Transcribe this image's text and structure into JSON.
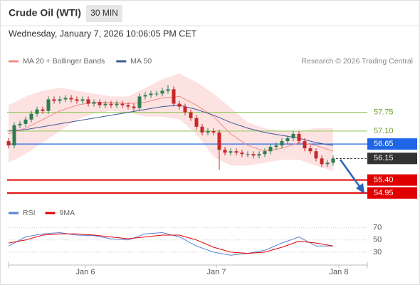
{
  "header": {
    "title": "Crude Oil (WTI)",
    "interval": "30 MIN",
    "timestamp": "Wednesday, January 7, 2026 10:06:05 PM CET",
    "credit": "Research © 2026 Trading Central"
  },
  "chart_data": [
    {
      "type": "candlestick",
      "x": [
        0,
        1,
        2,
        3,
        4,
        5,
        6,
        7,
        8,
        9,
        10,
        11,
        12,
        13,
        14,
        15,
        16,
        17,
        18,
        19,
        20,
        21,
        22,
        23,
        24,
        25,
        26,
        27,
        28,
        29,
        30,
        31,
        32,
        33,
        34,
        35,
        36,
        37,
        38,
        39,
        40,
        41,
        42,
        43,
        44,
        45,
        46,
        47,
        48,
        49,
        50,
        51,
        52,
        53,
        54,
        55,
        56,
        57
      ],
      "open": [
        56.75,
        56.6,
        57.3,
        57.35,
        57.5,
        57.7,
        57.85,
        57.8,
        58.2,
        58.15,
        58.2,
        58.25,
        58.2,
        58.15,
        58.2,
        58.05,
        58.1,
        58.0,
        58.05,
        58.0,
        58.05,
        58.0,
        57.95,
        57.9,
        58.3,
        58.35,
        58.4,
        58.4,
        58.5,
        58.55,
        58.05,
        57.95,
        57.75,
        57.55,
        57.25,
        57.05,
        57.1,
        57.05,
        56.45,
        56.35,
        56.4,
        56.35,
        56.3,
        56.3,
        56.25,
        56.3,
        56.4,
        56.55,
        56.6,
        56.75,
        56.85,
        57.0,
        56.75,
        56.5,
        56.4,
        56.15,
        55.95,
        56.0
      ],
      "high": [
        56.85,
        57.4,
        57.45,
        57.6,
        57.8,
        57.95,
        57.95,
        58.3,
        58.3,
        58.3,
        58.35,
        58.35,
        58.3,
        58.3,
        58.3,
        58.2,
        58.2,
        58.15,
        58.15,
        58.15,
        58.15,
        58.1,
        58.05,
        58.4,
        58.45,
        58.5,
        58.5,
        58.6,
        58.7,
        58.65,
        58.15,
        58.05,
        57.85,
        57.65,
        57.35,
        57.2,
        57.2,
        57.15,
        56.55,
        56.5,
        56.5,
        56.45,
        56.4,
        56.4,
        56.4,
        56.5,
        56.65,
        56.7,
        56.85,
        56.95,
        57.1,
        57.1,
        56.85,
        56.6,
        56.5,
        56.25,
        56.1,
        56.25
      ],
      "low": [
        56.5,
        56.5,
        57.2,
        57.25,
        57.4,
        57.6,
        57.7,
        57.7,
        58.05,
        58.05,
        58.1,
        58.1,
        58.05,
        58.05,
        57.95,
        57.95,
        57.9,
        57.9,
        57.9,
        57.9,
        57.9,
        57.85,
        57.8,
        57.8,
        58.2,
        58.25,
        58.3,
        58.3,
        58.4,
        57.95,
        57.85,
        57.65,
        57.45,
        57.15,
        56.95,
        56.95,
        56.95,
        55.75,
        56.25,
        56.25,
        56.25,
        56.2,
        56.2,
        56.15,
        56.15,
        56.2,
        56.3,
        56.45,
        56.5,
        56.65,
        56.75,
        56.65,
        56.4,
        56.3,
        56.05,
        55.85,
        55.85,
        55.9
      ],
      "close": [
        56.6,
        57.3,
        57.35,
        57.5,
        57.7,
        57.85,
        57.8,
        58.2,
        58.15,
        58.2,
        58.25,
        58.2,
        58.15,
        58.2,
        58.05,
        58.1,
        58.0,
        58.05,
        58.0,
        58.05,
        58.0,
        57.95,
        57.9,
        58.3,
        58.35,
        58.4,
        58.4,
        58.5,
        58.55,
        58.05,
        57.95,
        57.75,
        57.55,
        57.25,
        57.05,
        57.1,
        57.05,
        56.45,
        56.35,
        56.4,
        56.35,
        56.3,
        56.3,
        56.25,
        56.3,
        56.4,
        56.55,
        56.6,
        56.75,
        56.85,
        57.0,
        56.75,
        56.5,
        56.4,
        56.15,
        55.95,
        56.0,
        56.15
      ],
      "up_color": "#2e7d4f",
      "down_color": "#c62828",
      "xlim": [
        -0.5,
        63
      ],
      "ylim": [
        54.6,
        59.3
      ],
      "overlays": [
        {
          "name": "MA 20 + Bollinger Bands",
          "color": "#f28b82",
          "band_color": "#fde2e2",
          "x": [
            0,
            3,
            6,
            9,
            12,
            15,
            18,
            21,
            24,
            27,
            30,
            33,
            36,
            39,
            42,
            45,
            48,
            51,
            54,
            57
          ],
          "values": [
            57.0,
            57.2,
            57.5,
            57.8,
            58.0,
            58.1,
            58.1,
            58.05,
            58.1,
            58.25,
            58.3,
            58.0,
            57.6,
            57.0,
            56.6,
            56.4,
            56.5,
            56.7,
            56.6,
            56.4
          ],
          "upper": [
            58.0,
            58.3,
            58.5,
            58.6,
            58.5,
            58.4,
            58.3,
            58.3,
            58.6,
            58.9,
            59.1,
            58.8,
            58.4,
            57.9,
            57.4,
            57.2,
            57.1,
            57.1,
            57.2,
            57.2
          ],
          "lower": [
            56.0,
            56.3,
            56.7,
            57.1,
            57.5,
            57.7,
            57.8,
            57.75,
            57.6,
            57.6,
            57.5,
            57.0,
            56.2,
            55.9,
            55.9,
            56.0,
            56.1,
            56.1,
            55.9,
            55.7
          ]
        },
        {
          "name": "MA 50",
          "color": "#3d5a98",
          "x": [
            0,
            3,
            6,
            9,
            12,
            15,
            18,
            21,
            24,
            27,
            30,
            33,
            36,
            39,
            42,
            45,
            48,
            51,
            54,
            57
          ],
          "values": [
            57.1,
            57.15,
            57.25,
            57.35,
            57.45,
            57.55,
            57.65,
            57.75,
            57.85,
            57.95,
            58.0,
            57.85,
            57.65,
            57.4,
            57.2,
            57.05,
            56.95,
            56.85,
            56.7,
            56.6
          ]
        }
      ],
      "levels": [
        {
          "value": 57.75,
          "label": "57.75",
          "color": "#9ccc65",
          "text_color": "#6a9f2a",
          "style": "text"
        },
        {
          "value": 57.1,
          "label": "57.10",
          "color": "#9ccc65",
          "text_color": "#6a9f2a",
          "style": "text"
        },
        {
          "value": 56.65,
          "label": "56.65",
          "color": "#1e66e6",
          "text_color": "#ffffff",
          "style": "box"
        },
        {
          "value": 56.15,
          "label": "56.15",
          "color": "#333333",
          "text_color": "#ffffff",
          "style": "current"
        },
        {
          "value": 55.4,
          "label": "55.40",
          "color": "#e00000",
          "text_color": "#ffffff",
          "style": "box"
        },
        {
          "value": 54.95,
          "label": "54.95",
          "color": "#e00000",
          "text_color": "#ffffff",
          "style": "box"
        }
      ]
    },
    {
      "type": "line",
      "x": [
        0,
        3,
        6,
        9,
        12,
        15,
        18,
        21,
        24,
        27,
        30,
        33,
        36,
        39,
        42,
        45,
        48,
        51,
        54,
        57
      ],
      "series": [
        {
          "name": "RSI",
          "color": "#5b7fd6",
          "values": [
            40,
            55,
            60,
            62,
            58,
            57,
            52,
            50,
            60,
            62,
            55,
            40,
            30,
            25,
            28,
            33,
            45,
            55,
            40,
            40
          ]
        },
        {
          "name": "9MA",
          "color": "#e00000",
          "values": [
            45,
            50,
            58,
            60,
            60,
            58,
            55,
            52,
            55,
            58,
            58,
            50,
            38,
            30,
            28,
            30,
            38,
            48,
            45,
            40
          ]
        }
      ],
      "xlim": [
        -0.5,
        63
      ],
      "ylim": [
        17,
        79
      ],
      "yticks": [
        30,
        50,
        70
      ],
      "xticks": [
        {
          "value": 13.5,
          "label": "Jan 6"
        },
        {
          "value": 36.5,
          "label": "Jan 7"
        },
        {
          "value": 58,
          "label": "Jan 8"
        }
      ]
    }
  ]
}
